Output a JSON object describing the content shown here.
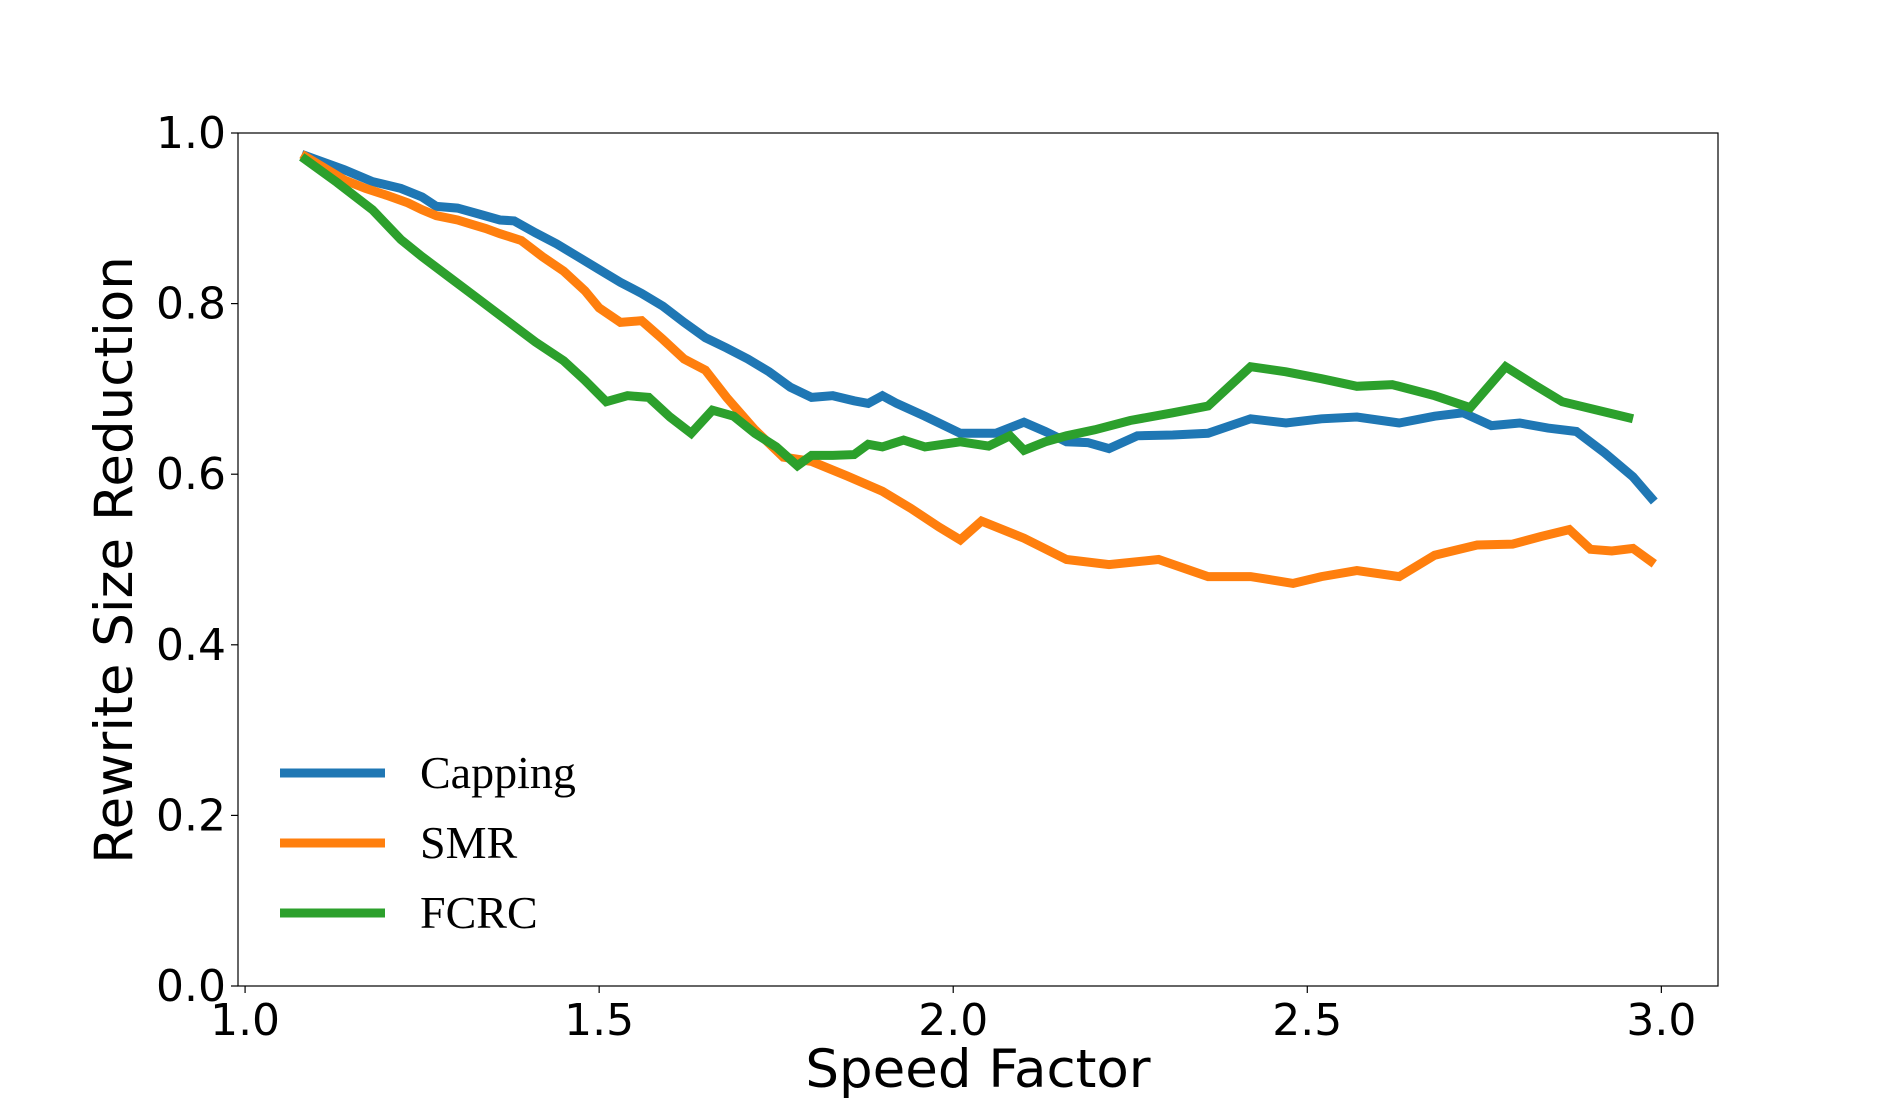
{
  "chart_data": {
    "type": "line",
    "title": "",
    "xlabel": "Speed Factor",
    "ylabel": "Rewrite Size Reduction",
    "xlim": [
      0.99,
      3.08
    ],
    "ylim": [
      0.0,
      1.0
    ],
    "xticks": [
      1.0,
      1.5,
      2.0,
      2.5,
      3.0
    ],
    "xtick_labels": [
      "1.0",
      "1.5",
      "2.0",
      "2.5",
      "3.0"
    ],
    "yticks": [
      0.0,
      0.2,
      0.4,
      0.6,
      0.8,
      1.0
    ],
    "ytick_labels": [
      "0.0",
      "0.2",
      "0.4",
      "0.6",
      "0.8",
      "1.0"
    ],
    "grid": false,
    "legend_position": "lower-left",
    "series": [
      {
        "name": "Capping",
        "color": "#1f77b4",
        "x": [
          1.08,
          1.14,
          1.18,
          1.22,
          1.25,
          1.27,
          1.3,
          1.33,
          1.36,
          1.38,
          1.41,
          1.44,
          1.47,
          1.5,
          1.53,
          1.56,
          1.59,
          1.62,
          1.65,
          1.68,
          1.71,
          1.74,
          1.77,
          1.8,
          1.83,
          1.86,
          1.88,
          1.9,
          1.92,
          1.96,
          2.01,
          2.06,
          2.1,
          2.13,
          2.16,
          2.19,
          2.22,
          2.26,
          2.31,
          2.36,
          2.42,
          2.47,
          2.52,
          2.57,
          2.63,
          2.68,
          2.72,
          2.76,
          2.8,
          2.84,
          2.88,
          2.92,
          2.96,
          2.99
        ],
        "y": [
          0.975,
          0.957,
          0.943,
          0.935,
          0.925,
          0.914,
          0.912,
          0.905,
          0.898,
          0.897,
          0.883,
          0.87,
          0.855,
          0.84,
          0.825,
          0.812,
          0.797,
          0.778,
          0.76,
          0.748,
          0.735,
          0.72,
          0.702,
          0.69,
          0.692,
          0.686,
          0.683,
          0.692,
          0.683,
          0.668,
          0.648,
          0.648,
          0.661,
          0.65,
          0.638,
          0.637,
          0.63,
          0.645,
          0.646,
          0.648,
          0.665,
          0.66,
          0.665,
          0.667,
          0.66,
          0.668,
          0.672,
          0.657,
          0.66,
          0.654,
          0.65,
          0.625,
          0.597,
          0.568
        ]
      },
      {
        "name": "SMR",
        "color": "#ff7f0e",
        "x": [
          1.08,
          1.11,
          1.14,
          1.17,
          1.2,
          1.23,
          1.25,
          1.27,
          1.3,
          1.32,
          1.34,
          1.36,
          1.39,
          1.42,
          1.45,
          1.48,
          1.5,
          1.53,
          1.56,
          1.59,
          1.62,
          1.65,
          1.68,
          1.72,
          1.76,
          1.8,
          1.85,
          1.9,
          1.94,
          1.98,
          2.01,
          2.04,
          2.1,
          2.16,
          2.22,
          2.29,
          2.36,
          2.42,
          2.48,
          2.52,
          2.57,
          2.63,
          2.68,
          2.74,
          2.79,
          2.83,
          2.87,
          2.9,
          2.93,
          2.96,
          2.99
        ],
        "y": [
          0.975,
          0.96,
          0.945,
          0.935,
          0.927,
          0.918,
          0.91,
          0.903,
          0.898,
          0.893,
          0.888,
          0.882,
          0.874,
          0.855,
          0.838,
          0.815,
          0.795,
          0.778,
          0.78,
          0.758,
          0.735,
          0.722,
          0.69,
          0.652,
          0.62,
          0.615,
          0.598,
          0.58,
          0.56,
          0.538,
          0.523,
          0.545,
          0.525,
          0.5,
          0.494,
          0.5,
          0.48,
          0.48,
          0.472,
          0.48,
          0.487,
          0.48,
          0.505,
          0.517,
          0.518,
          0.527,
          0.535,
          0.512,
          0.51,
          0.513,
          0.495
        ]
      },
      {
        "name": "FCRC",
        "color": "#2ca02c",
        "x": [
          1.08,
          1.13,
          1.18,
          1.22,
          1.25,
          1.29,
          1.33,
          1.37,
          1.41,
          1.45,
          1.48,
          1.51,
          1.54,
          1.57,
          1.6,
          1.63,
          1.66,
          1.69,
          1.72,
          1.75,
          1.78,
          1.8,
          1.83,
          1.86,
          1.88,
          1.9,
          1.93,
          1.96,
          2.01,
          2.05,
          2.08,
          2.1,
          2.13,
          2.16,
          2.2,
          2.25,
          2.31,
          2.36,
          2.42,
          2.47,
          2.52,
          2.57,
          2.62,
          2.68,
          2.73,
          2.78,
          2.82,
          2.86,
          2.91,
          2.96
        ],
        "y": [
          0.972,
          0.942,
          0.91,
          0.875,
          0.855,
          0.83,
          0.805,
          0.78,
          0.755,
          0.733,
          0.71,
          0.685,
          0.692,
          0.69,
          0.667,
          0.648,
          0.675,
          0.668,
          0.648,
          0.632,
          0.61,
          0.622,
          0.622,
          0.623,
          0.635,
          0.632,
          0.64,
          0.632,
          0.638,
          0.633,
          0.645,
          0.628,
          0.638,
          0.645,
          0.652,
          0.663,
          0.672,
          0.68,
          0.726,
          0.72,
          0.712,
          0.703,
          0.705,
          0.692,
          0.678,
          0.726,
          0.705,
          0.685,
          0.675,
          0.665
        ]
      }
    ]
  }
}
